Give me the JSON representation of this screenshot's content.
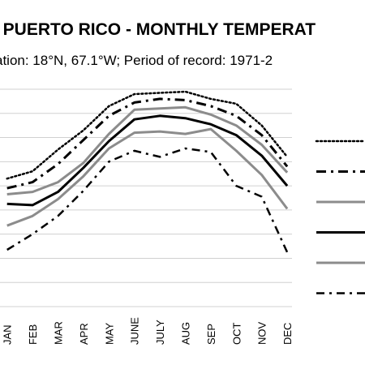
{
  "chart_data": {
    "type": "line",
    "title": "S, PUERTO RICO - MONTHLY TEMPERAT",
    "subtitle": "ation: 18°N, 67.1°W; Period of record: 1971-2",
    "categories": [
      "JAN",
      "FEB",
      "MAR",
      "APR",
      "MAY",
      "JUNE",
      "JULY",
      "AUG",
      "SEP",
      "OCT",
      "NOV",
      "DEC"
    ],
    "xlabel": "",
    "ylabel": "",
    "ylim": [
      0,
      9
    ],
    "grid": true,
    "legend_position": "right",
    "series": [
      {
        "style": "dotted",
        "color": "#000000",
        "values": [
          5.3,
          5.6,
          6.5,
          7.3,
          8.3,
          8.8,
          8.85,
          8.9,
          8.6,
          8.4,
          7.5,
          6.2
        ]
      },
      {
        "style": "dash-dot-heavy",
        "color": "#000000",
        "values": [
          4.9,
          5.15,
          5.9,
          6.9,
          7.9,
          8.45,
          8.6,
          8.55,
          8.3,
          7.9,
          7.1,
          5.8
        ]
      },
      {
        "style": "solid",
        "color": "#8c8c8c",
        "values": [
          4.65,
          4.75,
          5.15,
          5.95,
          7.15,
          8.15,
          8.2,
          8.25,
          7.95,
          7.5,
          6.7,
          5.55
        ]
      },
      {
        "style": "solid",
        "color": "#000000",
        "values": [
          4.25,
          4.2,
          4.75,
          5.75,
          6.85,
          7.75,
          7.9,
          7.8,
          7.55,
          7.1,
          6.25,
          5.0
        ]
      },
      {
        "style": "solid",
        "color": "#8c8c8c",
        "values": [
          3.35,
          3.75,
          4.45,
          5.4,
          6.55,
          7.2,
          7.25,
          7.15,
          7.35,
          6.45,
          5.45,
          4.05
        ]
      },
      {
        "style": "dash-dot",
        "color": "#000000",
        "values": [
          2.35,
          3.0,
          3.75,
          4.8,
          6.0,
          6.45,
          6.2,
          6.55,
          6.4,
          5.0,
          4.55,
          2.25
        ]
      }
    ]
  }
}
